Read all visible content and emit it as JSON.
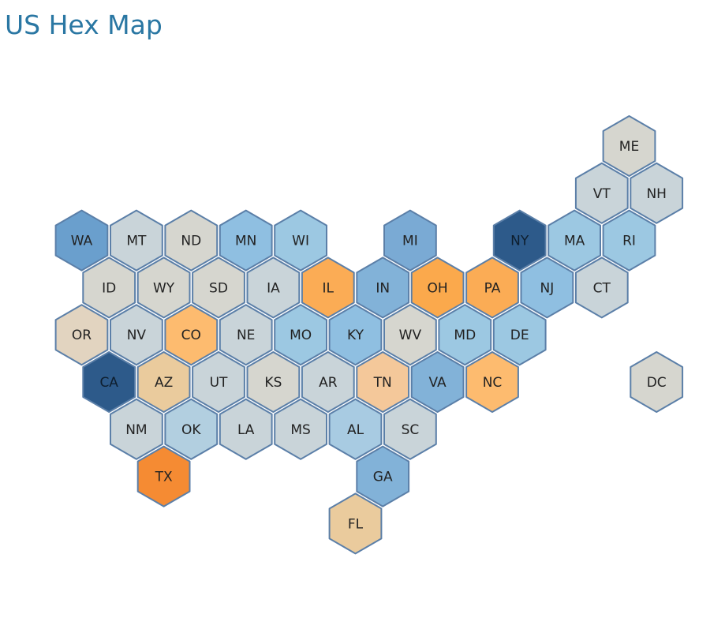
{
  "title": "US Hex Map",
  "colors": {
    "title": "#2a77a3",
    "hex_stroke": "#5b7fa8",
    "neutral_gray": "#d6d6cf",
    "gray_blue": "#c9d4d9",
    "light_blue": "#9cc8e2",
    "mid_blue": "#82b2d8",
    "steel_blue": "#6a9fcd",
    "dark_blue": "#2d5a8a",
    "pale_orange": "#f4c89a",
    "light_orange": "#fdbb6f",
    "orange": "#fba94c",
    "dark_orange": "#f58b33",
    "tan": "#e6cfa9"
  },
  "states": [
    {
      "abbr": "ME",
      "row": 0,
      "col": 10,
      "color": "#d6d6cf"
    },
    {
      "abbr": "VT",
      "row": 1,
      "col": 9,
      "color": "#c9d4d9"
    },
    {
      "abbr": "NH",
      "row": 1,
      "col": 10,
      "color": "#c9d4d9"
    },
    {
      "abbr": "WA",
      "row": 2,
      "col": 0,
      "color": "#6a9fcd"
    },
    {
      "abbr": "MT",
      "row": 2,
      "col": 1,
      "color": "#c9d4d9"
    },
    {
      "abbr": "ND",
      "row": 2,
      "col": 2,
      "color": "#d6d6cf"
    },
    {
      "abbr": "MN",
      "row": 2,
      "col": 3,
      "color": "#8fbfe1"
    },
    {
      "abbr": "WI",
      "row": 2,
      "col": 4,
      "color": "#9cc8e2"
    },
    {
      "abbr": "MI",
      "row": 2,
      "col": 6,
      "color": "#7aaad4"
    },
    {
      "abbr": "NY",
      "row": 2,
      "col": 8,
      "color": "#2d5a8a"
    },
    {
      "abbr": "MA",
      "row": 2,
      "col": 9,
      "color": "#9cc8e2"
    },
    {
      "abbr": "RI",
      "row": 2,
      "col": 10,
      "color": "#9cc8e2"
    },
    {
      "abbr": "ID",
      "row": 3,
      "col": 0,
      "color": "#d6d6cf"
    },
    {
      "abbr": "WY",
      "row": 3,
      "col": 1,
      "color": "#d6d6cf"
    },
    {
      "abbr": "SD",
      "row": 3,
      "col": 2,
      "color": "#d6d6cf"
    },
    {
      "abbr": "IA",
      "row": 3,
      "col": 3,
      "color": "#c9d4d9"
    },
    {
      "abbr": "IL",
      "row": 3,
      "col": 4,
      "color": "#fbac55"
    },
    {
      "abbr": "IN",
      "row": 3,
      "col": 5,
      "color": "#82b2d8"
    },
    {
      "abbr": "OH",
      "row": 3,
      "col": 6,
      "color": "#fba94c"
    },
    {
      "abbr": "PA",
      "row": 3,
      "col": 7,
      "color": "#fbac55"
    },
    {
      "abbr": "NJ",
      "row": 3,
      "col": 8,
      "color": "#8fbfe1"
    },
    {
      "abbr": "CT",
      "row": 3,
      "col": 9,
      "color": "#c9d4d9"
    },
    {
      "abbr": "OR",
      "row": 4,
      "col": 0,
      "color": "#e2d4c0"
    },
    {
      "abbr": "NV",
      "row": 4,
      "col": 1,
      "color": "#c9d4d9"
    },
    {
      "abbr": "CO",
      "row": 4,
      "col": 2,
      "color": "#fdbb6f"
    },
    {
      "abbr": "NE",
      "row": 4,
      "col": 3,
      "color": "#c9d4d9"
    },
    {
      "abbr": "MO",
      "row": 4,
      "col": 4,
      "color": "#9cc8e2"
    },
    {
      "abbr": "KY",
      "row": 4,
      "col": 5,
      "color": "#8fbfe1"
    },
    {
      "abbr": "WV",
      "row": 4,
      "col": 6,
      "color": "#d6d6cf"
    },
    {
      "abbr": "MD",
      "row": 4,
      "col": 7,
      "color": "#9cc8e2"
    },
    {
      "abbr": "DE",
      "row": 4,
      "col": 8,
      "color": "#9cc8e2"
    },
    {
      "abbr": "CA",
      "row": 5,
      "col": 0,
      "color": "#2d5a8a"
    },
    {
      "abbr": "AZ",
      "row": 5,
      "col": 1,
      "color": "#eacb9d"
    },
    {
      "abbr": "UT",
      "row": 5,
      "col": 2,
      "color": "#c9d4d9"
    },
    {
      "abbr": "KS",
      "row": 5,
      "col": 3,
      "color": "#d6d6cf"
    },
    {
      "abbr": "AR",
      "row": 5,
      "col": 4,
      "color": "#c9d4d9"
    },
    {
      "abbr": "TN",
      "row": 5,
      "col": 5,
      "color": "#f4c89a"
    },
    {
      "abbr": "VA",
      "row": 5,
      "col": 6,
      "color": "#82b2d8"
    },
    {
      "abbr": "NC",
      "row": 5,
      "col": 7,
      "color": "#fdbb6f"
    },
    {
      "abbr": "DC",
      "row": 5,
      "col": 10,
      "color": "#d6d6cf"
    },
    {
      "abbr": "NM",
      "row": 6,
      "col": 1,
      "color": "#c9d4d9"
    },
    {
      "abbr": "OK",
      "row": 6,
      "col": 2,
      "color": "#b2cfe0"
    },
    {
      "abbr": "LA",
      "row": 6,
      "col": 3,
      "color": "#c9d4d9"
    },
    {
      "abbr": "MS",
      "row": 6,
      "col": 4,
      "color": "#c9d4d9"
    },
    {
      "abbr": "AL",
      "row": 6,
      "col": 5,
      "color": "#a8cbe2"
    },
    {
      "abbr": "SC",
      "row": 6,
      "col": 6,
      "color": "#c9d4d9"
    },
    {
      "abbr": "TX",
      "row": 7,
      "col": 1,
      "color": "#f58b33"
    },
    {
      "abbr": "GA",
      "row": 7,
      "col": 5,
      "color": "#82b2d8"
    },
    {
      "abbr": "FL",
      "row": 8,
      "col": 5,
      "color": "#eacb9d"
    }
  ]
}
